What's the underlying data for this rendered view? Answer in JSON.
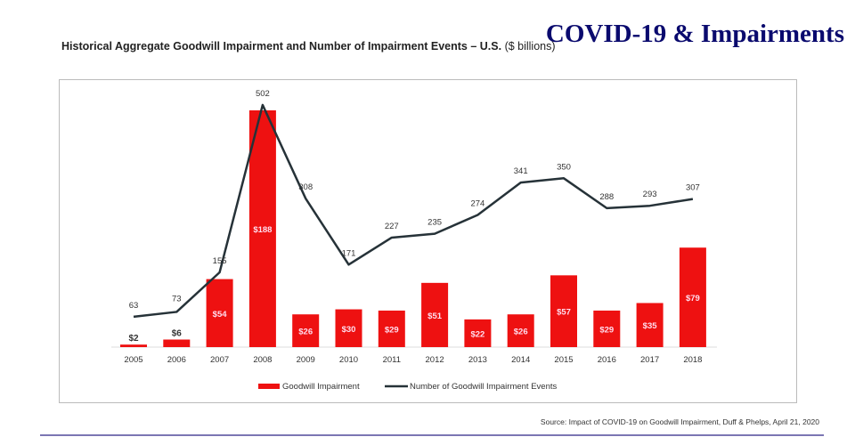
{
  "header": {
    "title": "COVID-19 & Impairments"
  },
  "chart_data": {
    "type": "bar+line",
    "title_bold": "Historical Aggregate Goodwill Impairment and Number of Impairment Events – U.S.",
    "title_unit": "($ billions)",
    "categories": [
      "2005",
      "2006",
      "2007",
      "2008",
      "2009",
      "2010",
      "2011",
      "2012",
      "2013",
      "2014",
      "2015",
      "2016",
      "2017",
      "2018"
    ],
    "series": [
      {
        "name": "Goodwill Impairment",
        "type": "bar",
        "color": "#ee1111",
        "values": [
          2,
          6,
          54,
          188,
          26,
          30,
          29,
          51,
          22,
          26,
          57,
          29,
          35,
          79
        ],
        "labels": [
          "$2",
          "$6",
          "$54",
          "$188",
          "$26",
          "$30",
          "$29",
          "$51",
          "$22",
          "$26",
          "$57",
          "$29",
          "$35",
          "$79"
        ]
      },
      {
        "name": "Number of Goodwill Impairment Events",
        "type": "line",
        "color": "#263238",
        "values": [
          63,
          73,
          155,
          502,
          308,
          171,
          227,
          235,
          274,
          341,
          350,
          288,
          293,
          307
        ],
        "labels": [
          "63",
          "73",
          "155",
          "502",
          "308",
          "171",
          "227",
          "235",
          "274",
          "341",
          "350",
          "288",
          "293",
          "307"
        ]
      }
    ],
    "grid": false,
    "legend": "bottom"
  },
  "footer": {
    "source": "Source: Impact of COVID-19 on Goodwill Impairment, Duff & Phelps, April 21, 2020"
  }
}
